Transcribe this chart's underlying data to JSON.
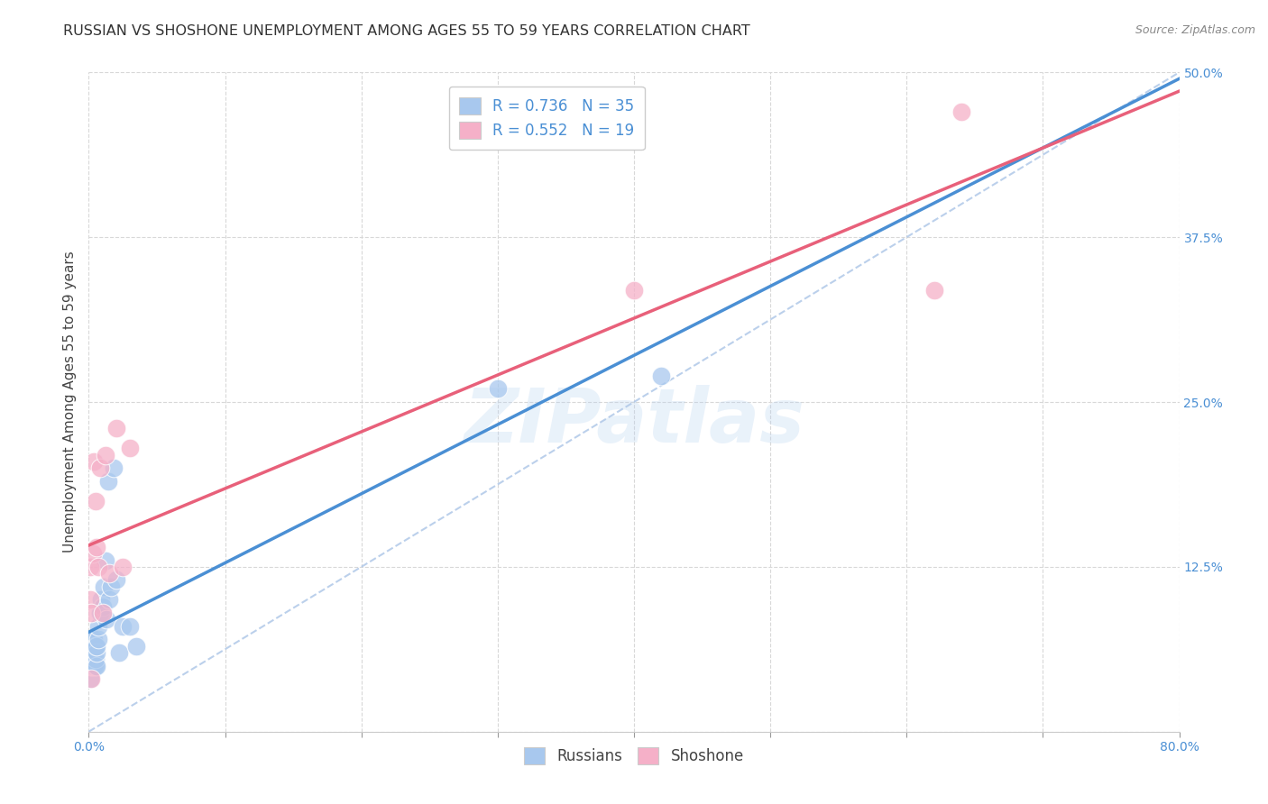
{
  "title": "RUSSIAN VS SHOSHONE UNEMPLOYMENT AMONG AGES 55 TO 59 YEARS CORRELATION CHART",
  "source": "Source: ZipAtlas.com",
  "ylabel": "Unemployment Among Ages 55 to 59 years",
  "xlim": [
    0.0,
    0.8
  ],
  "ylim": [
    0.0,
    0.5
  ],
  "xticks": [
    0.0,
    0.1,
    0.2,
    0.3,
    0.4,
    0.5,
    0.6,
    0.7,
    0.8
  ],
  "yticks": [
    0.0,
    0.125,
    0.25,
    0.375,
    0.5
  ],
  "background_color": "#ffffff",
  "grid_color": "#d8d8d8",
  "russian_color": "#a8c8ee",
  "shoshone_color": "#f5b0c8",
  "russian_line_color": "#4a8fd4",
  "shoshone_line_color": "#e8607a",
  "russian_R": 0.736,
  "russian_N": 35,
  "shoshone_R": 0.552,
  "shoshone_N": 19,
  "russians_x": [
    0.001,
    0.001,
    0.002,
    0.002,
    0.003,
    0.003,
    0.003,
    0.004,
    0.004,
    0.004,
    0.005,
    0.005,
    0.005,
    0.006,
    0.006,
    0.006,
    0.007,
    0.007,
    0.008,
    0.009,
    0.01,
    0.011,
    0.012,
    0.013,
    0.014,
    0.015,
    0.016,
    0.018,
    0.02,
    0.022,
    0.025,
    0.03,
    0.035,
    0.3,
    0.42
  ],
  "russians_y": [
    0.04,
    0.05,
    0.05,
    0.06,
    0.05,
    0.06,
    0.07,
    0.05,
    0.06,
    0.07,
    0.05,
    0.055,
    0.065,
    0.05,
    0.06,
    0.065,
    0.07,
    0.08,
    0.09,
    0.1,
    0.095,
    0.11,
    0.13,
    0.085,
    0.19,
    0.1,
    0.11,
    0.2,
    0.115,
    0.06,
    0.08,
    0.08,
    0.065,
    0.26,
    0.27
  ],
  "shoshone_x": [
    0.001,
    0.001,
    0.002,
    0.002,
    0.003,
    0.004,
    0.005,
    0.006,
    0.007,
    0.008,
    0.01,
    0.012,
    0.015,
    0.02,
    0.025,
    0.03,
    0.4,
    0.62,
    0.64
  ],
  "shoshone_y": [
    0.1,
    0.125,
    0.04,
    0.09,
    0.135,
    0.205,
    0.175,
    0.14,
    0.125,
    0.2,
    0.09,
    0.21,
    0.12,
    0.23,
    0.125,
    0.215,
    0.335,
    0.335,
    0.47
  ],
  "title_fontsize": 11.5,
  "tick_fontsize": 10,
  "ylabel_fontsize": 11,
  "legend_fontsize": 12,
  "watermark_text": "ZIPatlas"
}
